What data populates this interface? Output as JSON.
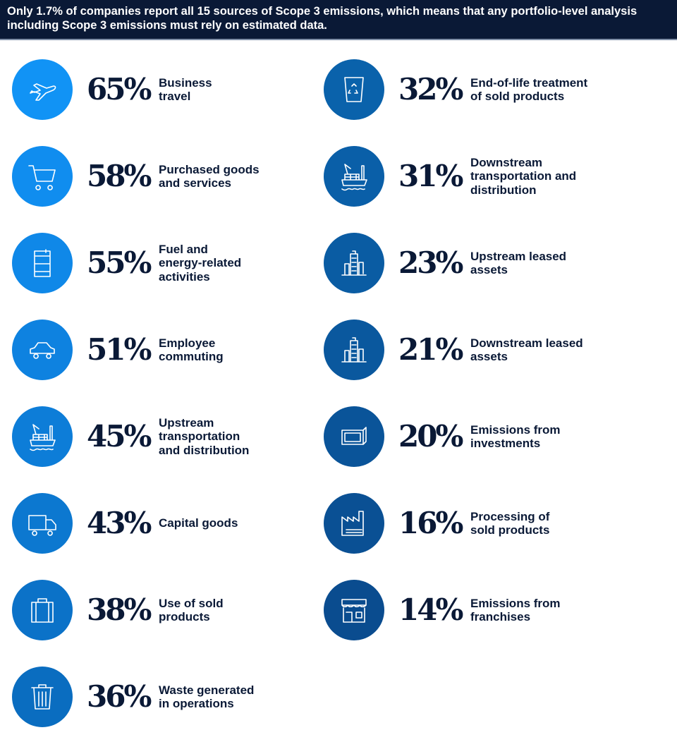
{
  "header": {
    "text": "Only 1.7% of companies report all 15 sources of Scope 3 emissions, which means that any portfolio-level analysis including Scope 3 emissions must rely on estimated data."
  },
  "chart_data": {
    "type": "table",
    "unit": "%",
    "categories": [
      "Business travel",
      "Purchased goods and services",
      "Fuel and energy-related activities",
      "Employee commuting",
      "Upstream transportation and distribution",
      "Capital goods",
      "Use of sold products",
      "Waste generated in operations",
      "End-of-life treatment of sold products",
      "Downstream transportation and distribution",
      "Upstream leased assets",
      "Downstream leased assets",
      "Emissions from investments",
      "Processing of sold products",
      "Emissions from franchises"
    ],
    "values": [
      65,
      58,
      55,
      51,
      45,
      43,
      38,
      36,
      32,
      31,
      23,
      21,
      20,
      16,
      14
    ]
  },
  "items": [
    {
      "pct": "65%",
      "label": "Business travel",
      "lines": [
        "Business",
        "travel"
      ],
      "icon": "airplane",
      "color": "#1193f5"
    },
    {
      "pct": "58%",
      "label": "Purchased goods and services",
      "lines": [
        "Purchased goods",
        "and services"
      ],
      "icon": "shopping-cart",
      "color": "#108def"
    },
    {
      "pct": "55%",
      "label": "Fuel and energy-related activities",
      "lines": [
        "Fuel and",
        "energy-related",
        "activities"
      ],
      "icon": "fuel-barrel",
      "color": "#0f88e8"
    },
    {
      "pct": "51%",
      "label": "Employee commuting",
      "lines": [
        "Employee",
        "commuting"
      ],
      "icon": "car",
      "color": "#0e82e0"
    },
    {
      "pct": "45%",
      "label": "Upstream transportation and distribution",
      "lines": [
        "Upstream",
        "transportation",
        "and distribution"
      ],
      "icon": "cargo-ship",
      "color": "#0d7dd8"
    },
    {
      "pct": "43%",
      "label": "Capital goods",
      "lines": [
        "Capital goods"
      ],
      "icon": "truck",
      "color": "#0c78d0"
    },
    {
      "pct": "38%",
      "label": "Use of sold products",
      "lines": [
        "Use of sold",
        "products"
      ],
      "icon": "suitcase",
      "color": "#0b72c8"
    },
    {
      "pct": "36%",
      "label": "Waste generated in operations",
      "lines": [
        "Waste generated",
        "in operations"
      ],
      "icon": "trash-bin",
      "color": "#0a6dc0"
    },
    {
      "pct": "32%",
      "label": "End-of-life treatment of sold products",
      "lines": [
        "End-of-life treatment",
        "of sold products"
      ],
      "icon": "recycle-bin",
      "color": "#0a62ab"
    },
    {
      "pct": "31%",
      "label": "Downstream transportation and distribution",
      "lines": [
        "Downstream",
        "transportation and",
        "distribution"
      ],
      "icon": "cargo-ship",
      "color": "#0a5fa8"
    },
    {
      "pct": "23%",
      "label": "Upstream leased assets",
      "lines": [
        "Upstream leased",
        "assets"
      ],
      "icon": "buildings",
      "color": "#0a5ca3"
    },
    {
      "pct": "21%",
      "label": "Downstream leased assets",
      "lines": [
        "Downstream leased",
        "assets"
      ],
      "icon": "buildings",
      "color": "#0a589e"
    },
    {
      "pct": "20%",
      "label": "Emissions from investments",
      "lines": [
        "Emissions from",
        "investments"
      ],
      "icon": "money-stack",
      "color": "#0a5499"
    },
    {
      "pct": "16%",
      "label": "Processing of sold products",
      "lines": [
        "Processing of",
        "sold products"
      ],
      "icon": "factory",
      "color": "#0a5094"
    },
    {
      "pct": "14%",
      "label": "Emissions from franchises",
      "lines": [
        "Emissions from",
        "franchises"
      ],
      "icon": "storefront",
      "color": "#0a4c8f"
    }
  ]
}
